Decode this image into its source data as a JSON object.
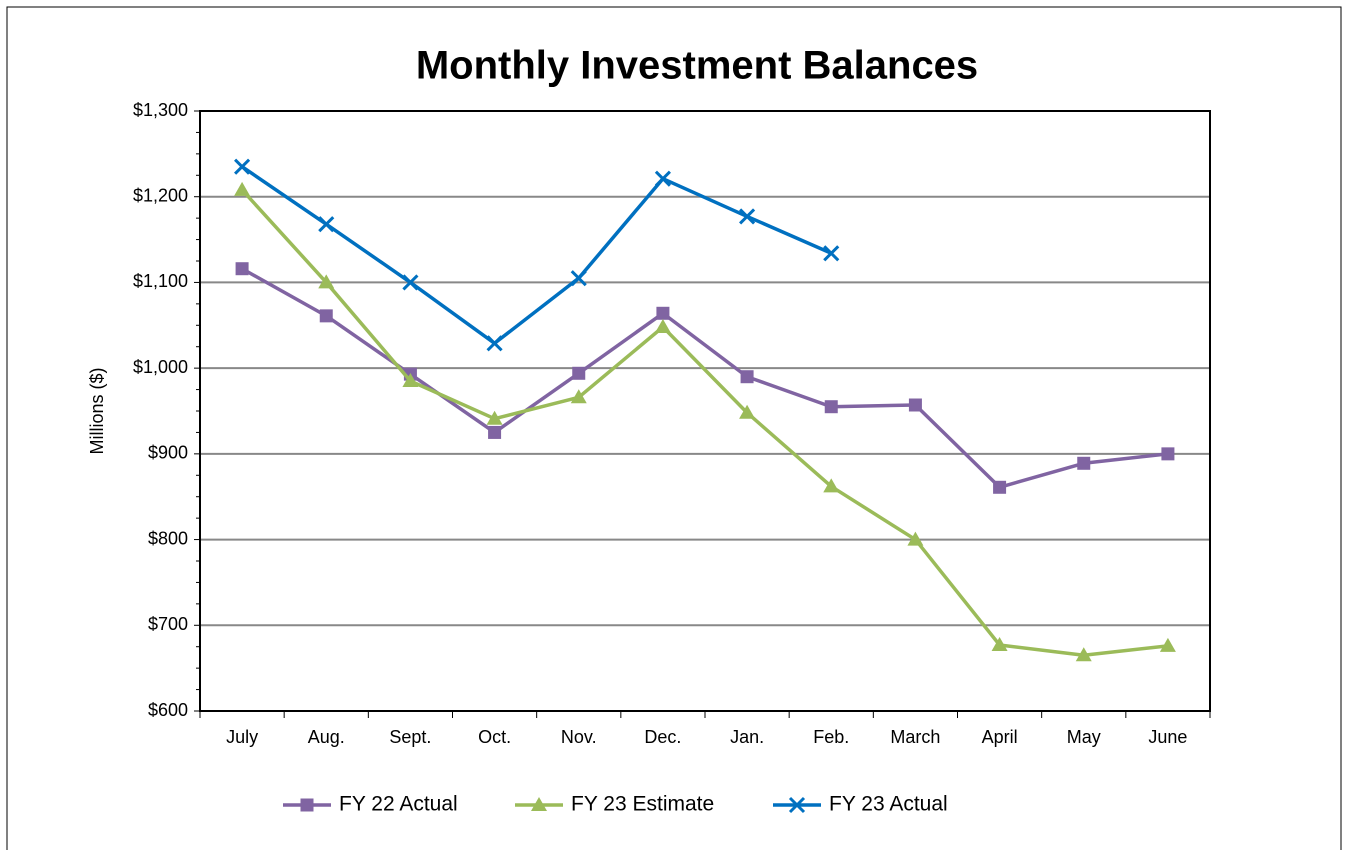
{
  "chart_data": {
    "type": "line",
    "title": "Monthly Investment Balances",
    "ylabel": "Millions ($)",
    "categories": [
      "July",
      "Aug.",
      "Sept.",
      "Oct.",
      "Nov.",
      "Dec.",
      "Jan.",
      "Feb.",
      "March",
      "April",
      "May",
      "June"
    ],
    "series": [
      {
        "name": "FY 22 Actual",
        "color": "#8064a2",
        "marker": "square",
        "values": [
          1116,
          1061,
          993,
          925,
          994,
          1064,
          990,
          955,
          957,
          861,
          889,
          900
        ]
      },
      {
        "name": "FY 23 Estimate",
        "color": "#9bbb59",
        "marker": "triangle",
        "values": [
          1208,
          1100,
          985,
          941,
          966,
          1048,
          948,
          862,
          800,
          677,
          665,
          676
        ]
      },
      {
        "name": "FY 23 Actual",
        "color": "#0070c0",
        "marker": "x",
        "values": [
          1235,
          1168,
          1100,
          1029,
          1105,
          1221,
          1177,
          1134,
          null,
          null,
          null,
          null
        ]
      }
    ],
    "ylim": [
      600,
      1300
    ],
    "yticks": [
      {
        "value": 600,
        "label": "$600"
      },
      {
        "value": 700,
        "label": "$700"
      },
      {
        "value": 800,
        "label": "$800"
      },
      {
        "value": 900,
        "label": "$900"
      },
      {
        "value": 1000,
        "label": "$1,000"
      },
      {
        "value": 1100,
        "label": "$1,100"
      },
      {
        "value": 1200,
        "label": "$1,200"
      },
      {
        "value": 1300,
        "label": "$1,300"
      }
    ],
    "grid": true,
    "legend": "bottom"
  }
}
